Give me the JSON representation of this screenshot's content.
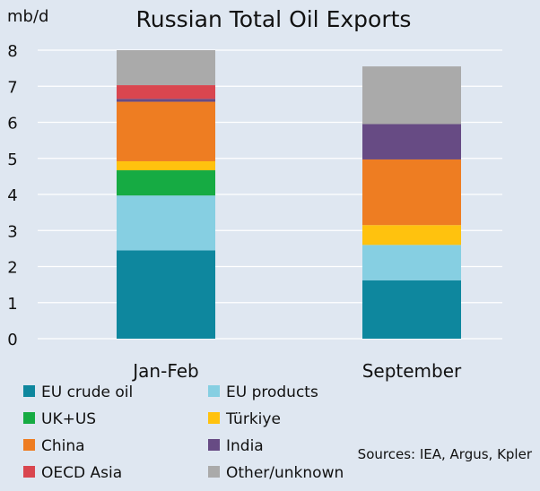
{
  "chart_data": {
    "type": "bar",
    "stacked": true,
    "title": "Russian Total Oil Exports",
    "ylabel": "mb/d",
    "xlabel": "",
    "ylim": [
      0,
      8
    ],
    "yticks": [
      0,
      1,
      2,
      3,
      4,
      5,
      6,
      7,
      8
    ],
    "grid": true,
    "legend_position": "bottom",
    "categories": [
      "Jan-Feb",
      "September"
    ],
    "series": [
      {
        "name": "EU crude oil",
        "color": "#0e879e",
        "values": [
          2.45,
          1.62
        ]
      },
      {
        "name": "EU products",
        "color": "#86cfe2",
        "values": [
          1.52,
          0.98
        ]
      },
      {
        "name": "UK+US",
        "color": "#16ab43",
        "values": [
          0.7,
          0.0
        ]
      },
      {
        "name": "Türkiye",
        "color": "#ffc20e",
        "values": [
          0.25,
          0.55
        ]
      },
      {
        "name": "China",
        "color": "#ee7d22",
        "values": [
          1.65,
          1.82
        ]
      },
      {
        "name": "India",
        "color": "#674b84",
        "values": [
          0.08,
          0.98
        ]
      },
      {
        "name": "OECD Asia",
        "color": "#d9464f",
        "values": [
          0.38,
          0.0
        ]
      },
      {
        "name": "Other/unknown",
        "color": "#aaaaaa",
        "values": [
          0.97,
          1.6
        ]
      }
    ],
    "annotation": "Sources: IEA, Argus, Kpler"
  }
}
